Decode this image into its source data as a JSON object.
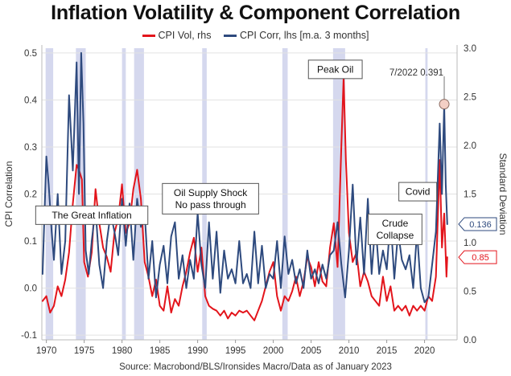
{
  "chart_data": {
    "type": "line",
    "title": "Inflation Volatility & Component Correlation",
    "source": "Source: Macrobond/BLS/Ironsides Macro/Data as of January 2023",
    "left_axis": {
      "label": "CPI Correlation",
      "range": [
        -0.11,
        0.51
      ],
      "ticks": [
        -0.1,
        0.0,
        0.1,
        0.2,
        0.3,
        0.4,
        0.5
      ],
      "tick_labels": [
        "-0.1",
        "0.0",
        "0.1",
        "0.2",
        "0.3",
        "0.4",
        "0.5"
      ]
    },
    "right_axis": {
      "label": "Standard Deviation",
      "range": [
        0.0,
        3.0
      ],
      "ticks": [
        0.0,
        0.5,
        1.0,
        1.5,
        2.0,
        2.5,
        3.0
      ],
      "tick_labels": [
        "0.0",
        "0.5",
        "1.0",
        "1.5",
        "2.0",
        "2.5",
        "3.0"
      ]
    },
    "x_axis": {
      "range": [
        1969.4,
        2024.3
      ],
      "ticks": [
        1970,
        1975,
        1980,
        1985,
        1990,
        1995,
        2000,
        2005,
        2010,
        2015,
        2020
      ],
      "tick_labels": [
        "1970",
        "1975",
        "1980",
        "1985",
        "1990",
        "1995",
        "2000",
        "2005",
        "2010",
        "2015",
        "2020"
      ]
    },
    "recessions": [
      [
        1969.9,
        1970.9
      ],
      [
        1973.9,
        1975.2
      ],
      [
        1980.0,
        1980.5
      ],
      [
        1981.6,
        1982.9
      ],
      [
        1990.6,
        1991.2
      ],
      [
        2001.2,
        2001.9
      ],
      [
        2007.9,
        2009.5
      ],
      [
        2020.1,
        2020.4
      ]
    ],
    "series": [
      {
        "name": "CPI Vol, rhs",
        "axis": "right",
        "color": "#e3141b",
        "x": [
          1969.5,
          1970.0,
          1970.5,
          1971.0,
          1971.5,
          1972.0,
          1972.5,
          1973.0,
          1973.5,
          1974.0,
          1974.3,
          1974.7,
          1975.0,
          1975.5,
          1976.0,
          1976.5,
          1977.0,
          1977.5,
          1978.0,
          1978.5,
          1979.0,
          1979.5,
          1980.0,
          1980.5,
          1981.0,
          1981.5,
          1982.0,
          1982.5,
          1983.0,
          1983.5,
          1984.0,
          1984.5,
          1985.0,
          1985.5,
          1986.0,
          1986.5,
          1987.0,
          1987.5,
          1988.0,
          1988.5,
          1989.0,
          1989.5,
          1990.0,
          1990.5,
          1991.0,
          1991.5,
          1992.0,
          1992.5,
          1993.0,
          1993.5,
          1994.0,
          1994.5,
          1995.0,
          1995.5,
          1996.0,
          1996.5,
          1997.0,
          1997.5,
          1998.0,
          1998.5,
          1999.0,
          1999.5,
          2000.0,
          2000.5,
          2001.0,
          2001.5,
          2002.0,
          2002.5,
          2003.0,
          2003.5,
          2004.0,
          2004.5,
          2005.0,
          2005.5,
          2006.0,
          2006.5,
          2007.0,
          2007.5,
          2008.0,
          2008.5,
          2009.0,
          2009.3,
          2009.6,
          2010.0,
          2010.5,
          2011.0,
          2011.5,
          2012.0,
          2012.5,
          2013.0,
          2013.5,
          2014.0,
          2014.5,
          2015.0,
          2015.5,
          2016.0,
          2016.5,
          2017.0,
          2017.5,
          2018.0,
          2018.5,
          2019.0,
          2019.5,
          2020.0,
          2020.5,
          2021.0,
          2021.5,
          2022.0,
          2022.3,
          2022.6,
          2022.9,
          2023.0
        ],
        "values": [
          0.4,
          0.45,
          0.28,
          0.35,
          0.55,
          0.45,
          0.62,
          0.9,
          1.4,
          1.8,
          1.75,
          1.65,
          0.8,
          0.65,
          0.9,
          1.55,
          1.2,
          0.95,
          0.85,
          0.7,
          1.1,
          1.25,
          1.6,
          1.1,
          1.2,
          1.55,
          1.75,
          1.45,
          0.8,
          0.65,
          0.45,
          0.62,
          0.35,
          0.3,
          0.55,
          0.28,
          0.42,
          0.35,
          0.55,
          0.7,
          0.9,
          1.05,
          0.7,
          0.95,
          0.45,
          0.35,
          0.32,
          0.3,
          0.25,
          0.3,
          0.22,
          0.28,
          0.25,
          0.3,
          0.28,
          0.3,
          0.25,
          0.2,
          0.3,
          0.4,
          0.55,
          0.7,
          0.8,
          0.45,
          0.3,
          0.45,
          0.4,
          0.5,
          0.65,
          0.45,
          0.6,
          0.85,
          0.75,
          0.55,
          0.8,
          0.6,
          0.55,
          0.95,
          1.2,
          0.75,
          2.0,
          2.7,
          1.85,
          1.1,
          0.8,
          0.9,
          0.55,
          0.7,
          0.6,
          0.45,
          0.4,
          0.35,
          0.65,
          0.4,
          0.55,
          0.3,
          0.35,
          0.3,
          0.35,
          0.25,
          0.35,
          0.3,
          0.35,
          0.3,
          0.45,
          0.4,
          0.65,
          1.85,
          0.95,
          1.3,
          0.65,
          0.85
        ]
      },
      {
        "name": "CPI Corr, lhs [m.a. 3 months]",
        "axis": "left",
        "color": "#2e4a7e",
        "x": [
          1969.5,
          1970.0,
          1970.3,
          1970.7,
          1971.0,
          1971.5,
          1972.0,
          1972.5,
          1973.0,
          1973.5,
          1974.0,
          1974.3,
          1974.6,
          1974.9,
          1975.2,
          1975.6,
          1976.0,
          1976.5,
          1977.0,
          1977.5,
          1978.0,
          1978.5,
          1979.0,
          1979.5,
          1980.0,
          1980.5,
          1981.0,
          1981.5,
          1982.0,
          1982.5,
          1983.0,
          1983.5,
          1984.0,
          1984.5,
          1985.0,
          1985.5,
          1986.0,
          1986.5,
          1987.0,
          1987.5,
          1988.0,
          1988.5,
          1989.0,
          1989.5,
          1990.0,
          1990.5,
          1991.0,
          1991.5,
          1992.0,
          1992.5,
          1993.0,
          1993.5,
          1994.0,
          1994.5,
          1995.0,
          1995.5,
          1996.0,
          1996.5,
          1997.0,
          1997.5,
          1998.0,
          1998.5,
          1999.0,
          1999.5,
          2000.0,
          2000.5,
          2001.0,
          2001.5,
          2002.0,
          2002.5,
          2003.0,
          2003.5,
          2004.0,
          2004.5,
          2005.0,
          2005.5,
          2006.0,
          2006.5,
          2007.0,
          2007.5,
          2008.0,
          2008.5,
          2009.0,
          2009.5,
          2010.0,
          2010.5,
          2011.0,
          2011.5,
          2012.0,
          2012.5,
          2013.0,
          2013.5,
          2014.0,
          2014.5,
          2015.0,
          2015.5,
          2016.0,
          2016.5,
          2017.0,
          2017.5,
          2018.0,
          2018.5,
          2019.0,
          2019.5,
          2020.0,
          2020.5,
          2021.0,
          2021.5,
          2022.0,
          2022.3,
          2022.6,
          2022.8,
          2023.0
        ],
        "values": [
          0.03,
          0.28,
          0.22,
          0.12,
          0.06,
          0.2,
          0.03,
          0.1,
          0.41,
          0.25,
          0.48,
          0.2,
          0.5,
          0.35,
          0.08,
          0.03,
          0.1,
          0.17,
          0.05,
          0.0,
          0.1,
          0.16,
          0.12,
          0.07,
          0.19,
          0.09,
          0.18,
          0.06,
          0.19,
          0.13,
          0.16,
          0.02,
          0.1,
          -0.02,
          0.05,
          0.09,
          0.01,
          0.11,
          0.14,
          0.02,
          0.07,
          0.0,
          0.06,
          0.02,
          0.16,
          0.05,
          0.0,
          0.14,
          0.02,
          0.12,
          -0.01,
          0.08,
          0.02,
          0.04,
          0.01,
          0.1,
          0.01,
          0.03,
          0.0,
          0.12,
          0.01,
          0.09,
          0.0,
          0.03,
          0.02,
          0.1,
          0.0,
          0.11,
          0.03,
          0.06,
          0.01,
          0.04,
          0.0,
          0.08,
          0.02,
          0.04,
          0.01,
          0.05,
          0.02,
          0.07,
          0.08,
          0.14,
          0.05,
          -0.02,
          0.08,
          0.22,
          0.05,
          0.15,
          0.03,
          0.19,
          0.03,
          0.14,
          0.03,
          0.08,
          0.04,
          0.15,
          0.02,
          0.12,
          0.06,
          0.04,
          0.07,
          0.0,
          0.12,
          0.0,
          -0.03,
          -0.02,
          0.05,
          0.12,
          0.35,
          0.2,
          0.391,
          0.22,
          0.136
        ]
      }
    ],
    "annotations": [
      {
        "text": "The Great Inflation",
        "x": 1976.0,
        "y": 0.155,
        "axis": "left"
      },
      {
        "text": "Oil Supply Shock",
        "x2": "No pass through",
        "x": 1991.7,
        "y": 0.19,
        "axis": "left"
      },
      {
        "text": "Peak Oil",
        "x": 2008.2,
        "y": 0.465,
        "axis": "left"
      },
      {
        "text": "Covid",
        "x": 2019.1,
        "y": 0.205,
        "axis": "left"
      },
      {
        "text": "Crude",
        "x2": "Collapse",
        "x": 2016.1,
        "y": 0.125,
        "axis": "left"
      }
    ],
    "callouts": [
      {
        "text": "7/2022 0.391",
        "x": 2022.6,
        "y": 0.391,
        "axis": "left"
      }
    ],
    "end_labels": [
      {
        "text": "0.136",
        "value": 0.136,
        "axis": "left",
        "color": "#2e4a7e"
      },
      {
        "text": "0.85",
        "value": 0.85,
        "axis": "right",
        "color": "#e3141b"
      }
    ]
  }
}
